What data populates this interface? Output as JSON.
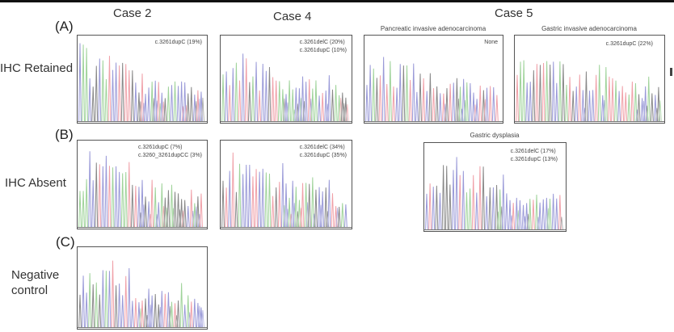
{
  "figure": {
    "columns": [
      "Case 2",
      "Case 4",
      "Case 5"
    ],
    "rows": [
      {
        "panel": "(A)",
        "label": "IHC Retained"
      },
      {
        "panel": "(B)",
        "label": "IHC Absent"
      },
      {
        "panel": "(C)",
        "label_lines": [
          "Negative",
          "control"
        ]
      }
    ],
    "colors": {
      "blue": "#9a9ad8",
      "green": "#9fd39a",
      "red": "#f0a0a8",
      "black": "#888888",
      "frame": "#555555"
    },
    "panels": [
      {
        "id": "A-case2",
        "subtitle": "",
        "annotations": [
          "c.3261dupC (19%)"
        ],
        "seed": 3
      },
      {
        "id": "A-case4",
        "subtitle": "",
        "annotations": [
          "c.3261delC (20%)",
          "c.3261dupC (10%)"
        ],
        "seed": 7
      },
      {
        "id": "A-case5-pancreatic",
        "subtitle": "Pancreatic invasive adenocarcinoma",
        "annotations": [
          "None"
        ],
        "seed": 11
      },
      {
        "id": "A-case5-gastric",
        "subtitle": "Gastric invasive adenocarcinoma",
        "annotations": [
          "c.3261dupC (22%)"
        ],
        "seed": 13
      },
      {
        "id": "B-case2",
        "subtitle": "",
        "annotations": [
          "c.3261dupC (7%)",
          "c.3260_3261dupCC (3%)"
        ],
        "seed": 17
      },
      {
        "id": "B-case4",
        "subtitle": "",
        "annotations": [
          "c.3261delC (34%)",
          "c.3261dupC (35%)"
        ],
        "seed": 19
      },
      {
        "id": "B-case5-gastric-dysplasia",
        "subtitle": "Gastric dysplasia",
        "annotations": [
          "c.3261delC (17%)",
          "c.3261dupC (13%)"
        ],
        "seed": 23
      },
      {
        "id": "C-case2-negative-control",
        "subtitle": "",
        "annotations": [],
        "seed": 29
      }
    ]
  }
}
